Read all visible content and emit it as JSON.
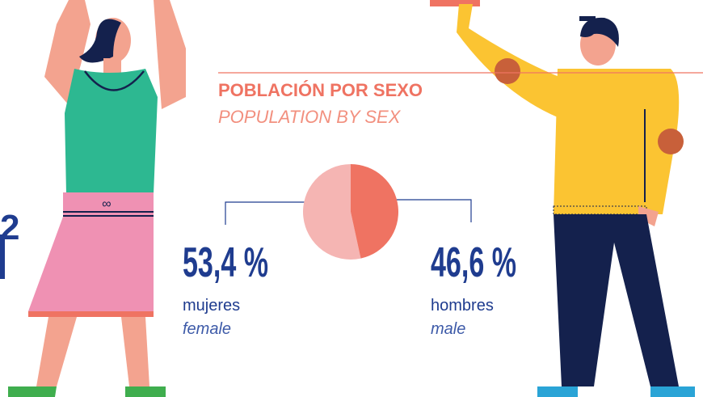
{
  "chart_data": {
    "type": "pie",
    "title": "POBLACIÓN POR SEXO",
    "subtitle": "POPULATION BY SEX",
    "categories": [
      "mujeres",
      "hombres"
    ],
    "category_translations": [
      "female",
      "male"
    ],
    "values": [
      53.4,
      46.6
    ],
    "value_labels": [
      "53,4 %",
      "46,6 %"
    ],
    "colors": [
      "#f5b5b3",
      "#ef7362"
    ]
  },
  "left_edge_text": "2"
}
